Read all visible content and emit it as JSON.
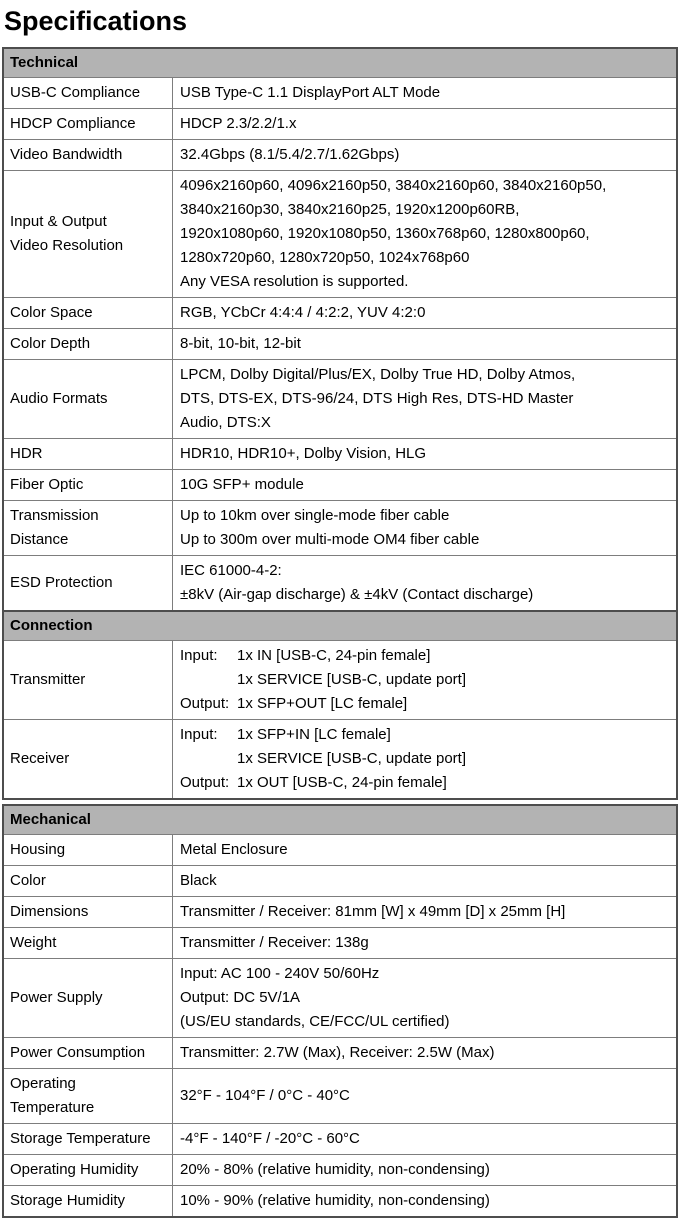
{
  "page_title": "Specifications",
  "colors": {
    "section_header_bg": "#b3b3b3",
    "outer_border": "#4d4d4d",
    "inner_border": "#7d7d7d",
    "text": "#000000"
  },
  "sections": [
    {
      "title": "Technical",
      "rows": [
        {
          "label": [
            "USB-C Compliance"
          ],
          "value": [
            "USB Type-C 1.1 DisplayPort ALT Mode"
          ]
        },
        {
          "label": [
            "HDCP Compliance"
          ],
          "value": [
            "HDCP 2.3/2.2/1.x"
          ]
        },
        {
          "label": [
            "Video Bandwidth"
          ],
          "value": [
            "32.4Gbps (8.1/5.4/2.7/1.62Gbps)"
          ]
        },
        {
          "label": [
            "Input & Output",
            "Video Resolution"
          ],
          "value": [
            "4096x2160p60, 4096x2160p50, 3840x2160p60, 3840x2160p50,",
            "3840x2160p30, 3840x2160p25, 1920x1200p60RB,",
            "1920x1080p60, 1920x1080p50, 1360x768p60, 1280x800p60,",
            "1280x720p60, 1280x720p50, 1024x768p60",
            "Any VESA resolution is supported."
          ]
        },
        {
          "label": [
            "Color Space"
          ],
          "value": [
            "RGB, YCbCr 4:4:4 / 4:2:2, YUV 4:2:0"
          ]
        },
        {
          "label": [
            "Color Depth"
          ],
          "value": [
            "8-bit, 10-bit, 12-bit"
          ]
        },
        {
          "label": [
            "Audio Formats"
          ],
          "value": [
            "LPCM, Dolby Digital/Plus/EX, Dolby True HD, Dolby Atmos,",
            "DTS, DTS-EX, DTS-96/24, DTS High Res, DTS-HD Master",
            "Audio, DTS:X"
          ]
        },
        {
          "label": [
            "HDR"
          ],
          "value": [
            "HDR10, HDR10+, Dolby Vision, HLG"
          ]
        },
        {
          "label": [
            "Fiber Optic"
          ],
          "value": [
            "10G SFP+ module"
          ]
        },
        {
          "label": [
            "Transmission",
            "Distance"
          ],
          "value": [
            "Up to 10km over single-mode fiber cable",
            "Up to 300m over multi-mode OM4 fiber cable"
          ]
        },
        {
          "label": [
            "ESD Protection"
          ],
          "value": [
            "IEC 61000-4-2:",
            "±8kV (Air-gap discharge) & ±4kV (Contact discharge)"
          ]
        }
      ]
    },
    {
      "title": "Connection",
      "joined": true,
      "rows": [
        {
          "label": [
            "Transmitter"
          ],
          "value": [
            {
              "pre": "Input:",
              "txt": "1x IN [USB-C, 24-pin female]"
            },
            {
              "pre": "",
              "txt": "1x SERVICE [USB-C, update port]"
            },
            {
              "pre": "Output:",
              "txt": "1x SFP+OUT [LC female]"
            }
          ]
        },
        {
          "label": [
            "Receiver"
          ],
          "value": [
            {
              "pre": "Input:",
              "txt": "1x SFP+IN [LC female]"
            },
            {
              "pre": "",
              "txt": "1x SERVICE [USB-C, update port]"
            },
            {
              "pre": "Output:",
              "txt": "1x OUT [USB-C, 24-pin female]"
            }
          ]
        }
      ]
    },
    {
      "title": "Mechanical",
      "gap_before": true,
      "rows": [
        {
          "label": [
            "Housing"
          ],
          "value": [
            "Metal Enclosure"
          ]
        },
        {
          "label": [
            "Color"
          ],
          "value": [
            "Black"
          ]
        },
        {
          "label": [
            "Dimensions"
          ],
          "value": [
            "Transmitter / Receiver: 81mm [W] x 49mm [D] x 25mm [H]"
          ]
        },
        {
          "label": [
            "Weight"
          ],
          "value": [
            "Transmitter / Receiver: 138g"
          ]
        },
        {
          "label": [
            "Power Supply"
          ],
          "value": [
            "Input: AC 100 - 240V 50/60Hz",
            "Output: DC 5V/1A",
            "(US/EU standards, CE/FCC/UL certified)"
          ]
        },
        {
          "label": [
            "Power Consumption"
          ],
          "value": [
            "Transmitter: 2.7W (Max), Receiver: 2.5W (Max)"
          ]
        },
        {
          "label": [
            "Operating",
            "Temperature"
          ],
          "value": [
            "32°F - 104°F / 0°C - 40°C"
          ]
        },
        {
          "label": [
            "Storage Temperature"
          ],
          "value": [
            "-4°F - 140°F / -20°C - 60°C"
          ]
        },
        {
          "label": [
            "Operating Humidity"
          ],
          "value": [
            "20% - 80% (relative humidity, non-condensing)"
          ]
        },
        {
          "label": [
            "Storage Humidity"
          ],
          "value": [
            "10% - 90% (relative humidity, non-condensing)"
          ]
        }
      ]
    }
  ]
}
